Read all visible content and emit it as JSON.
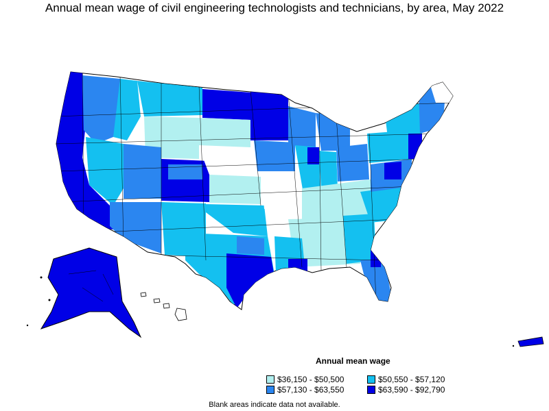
{
  "title": "Annual mean wage of civil engineering technologists and technicians, by area, May 2022",
  "legend": {
    "title": "Annual mean wage",
    "items": [
      {
        "label": "$36,150 - $50,500",
        "color": "#b2f0f0"
      },
      {
        "label": "$50,550 - $57,120",
        "color": "#14c0f0"
      },
      {
        "label": "$57,130 - $63,550",
        "color": "#2b86f0"
      },
      {
        "label": "$63,590 - $92,790",
        "color": "#0000e6"
      }
    ]
  },
  "note": "Blank areas indicate data not available.",
  "colors": {
    "no_data": "#ffffff",
    "border": "#000000"
  }
}
